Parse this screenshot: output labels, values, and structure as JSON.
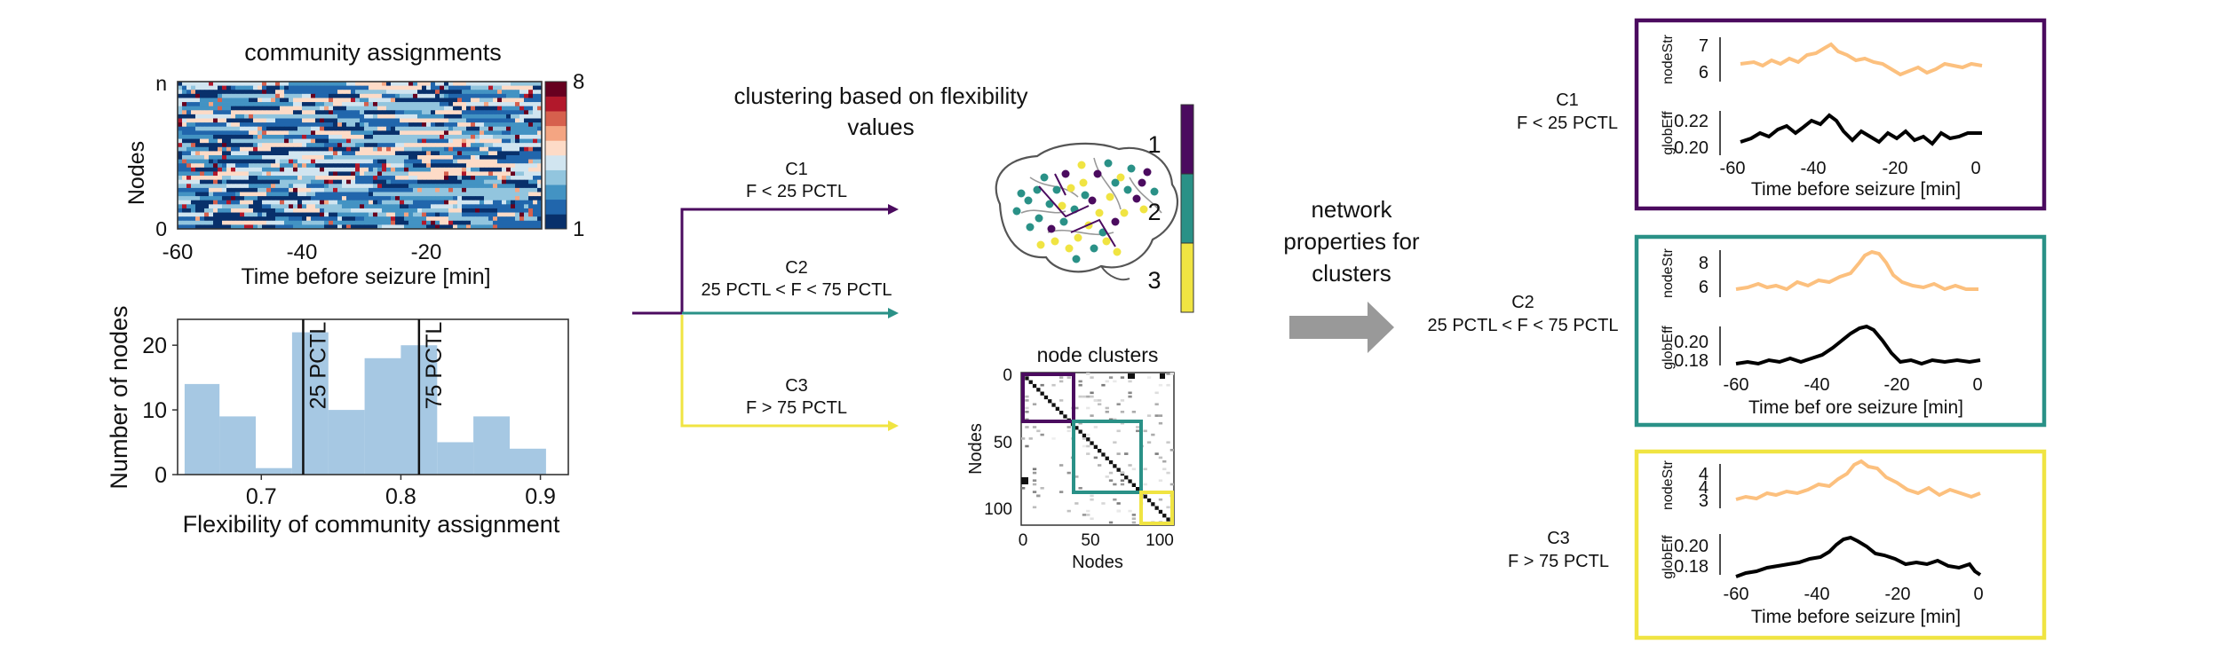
{
  "community": {
    "title": "community assignments",
    "ylabel": "Nodes",
    "y_top": "n",
    "y_bottom": "0",
    "xlabel": "Time before seizure [min]",
    "xticks": [
      "-60",
      "-40",
      "-20"
    ],
    "colorbar_max": "8",
    "colorbar_min": "1",
    "colors": [
      "#08306b",
      "#2166ac",
      "#4393c3",
      "#92c5de",
      "#d1e5f0",
      "#fddbc7",
      "#f4a582",
      "#d6604d",
      "#b2182b",
      "#67001f"
    ]
  },
  "histogram": {
    "ylabel": "Number of nodes",
    "xlabel": "Flexibility of community assignment",
    "yticks": [
      "0",
      "10",
      "20"
    ],
    "xticks": [
      "0.7",
      "0.8",
      "0.9"
    ],
    "p25_label": "25 PCTL",
    "p75_label": "75 PCTL",
    "p25_value": 0.73,
    "p75_value": 0.813,
    "bar_color": "#a6c8e3"
  },
  "chart_data": {
    "type": "bar",
    "bin_edges": [
      0.645,
      0.67,
      0.696,
      0.722,
      0.748,
      0.774,
      0.8,
      0.826,
      0.852,
      0.878,
      0.904
    ],
    "values": [
      14,
      9,
      1,
      22,
      10,
      18,
      20,
      5,
      9,
      4
    ],
    "ylim": [
      0,
      24
    ],
    "xlim": [
      0.64,
      0.92
    ],
    "xlabel": "Flexibility of community assignment",
    "ylabel": "Number of nodes",
    "title": ""
  },
  "clustering": {
    "title_line1": "clustering based on flexibility",
    "title_line2": "values",
    "branches": [
      {
        "name": "C1",
        "rule": "F < 25 PCTL",
        "color": "#4b0b5f"
      },
      {
        "name": "C2",
        "rule": "25 PCTL < F < 75 PCTL",
        "color": "#2a9187"
      },
      {
        "name": "C3",
        "rule": "F > 75 PCTL",
        "color": "#f0e442"
      }
    ],
    "bar_labels": [
      "1",
      "2",
      "3"
    ]
  },
  "node_clusters": {
    "title": "node clusters",
    "xlabel": "Nodes",
    "ylabel": "Nodes",
    "xticks": [
      "0",
      "50",
      "100"
    ],
    "yticks": [
      "0",
      "50",
      "100"
    ]
  },
  "network": {
    "label_line1": "network",
    "label_line2": "properties for",
    "label_line3": "clusters",
    "arrow_color": "#999999"
  },
  "panels": [
    {
      "name": "C1",
      "rule": "F < 25 PCTL",
      "border": "#4b0b5f",
      "top_label": "nodeStr",
      "top_ticks": [
        "7",
        "6"
      ],
      "bottom_label": "globEff",
      "bottom_ticks": [
        "0.22",
        "0.20"
      ],
      "xticks": [
        "-60",
        "-40",
        "-20",
        "0"
      ],
      "xlabel": "Time before seizure [min]"
    },
    {
      "name": "C2",
      "rule": "25 PCTL < F < 75 PCTL",
      "border": "#2a9187",
      "top_label": "nodeStr",
      "top_ticks": [
        "8",
        "6"
      ],
      "bottom_label": "globEff",
      "bottom_ticks": [
        "0.20",
        "0.18"
      ],
      "xticks": [
        "-60",
        "-40",
        "-20",
        "0"
      ],
      "xlabel": "Time bef ore seizure [min]"
    },
    {
      "name": "C3",
      "rule": "F > 75 PCTL",
      "border": "#f0e442",
      "top_label": "nodeStr",
      "top_ticks": [
        "4",
        "4",
        "3"
      ],
      "bottom_label": "globEff",
      "bottom_ticks": [
        "0.20",
        "0.18"
      ],
      "xticks": [
        "-60",
        "-40",
        "-20",
        "0"
      ],
      "xlabel": "Time before seizure [min]"
    }
  ],
  "line_colors": {
    "nodeStr": "#fcc07e",
    "globEff": "#000000"
  }
}
